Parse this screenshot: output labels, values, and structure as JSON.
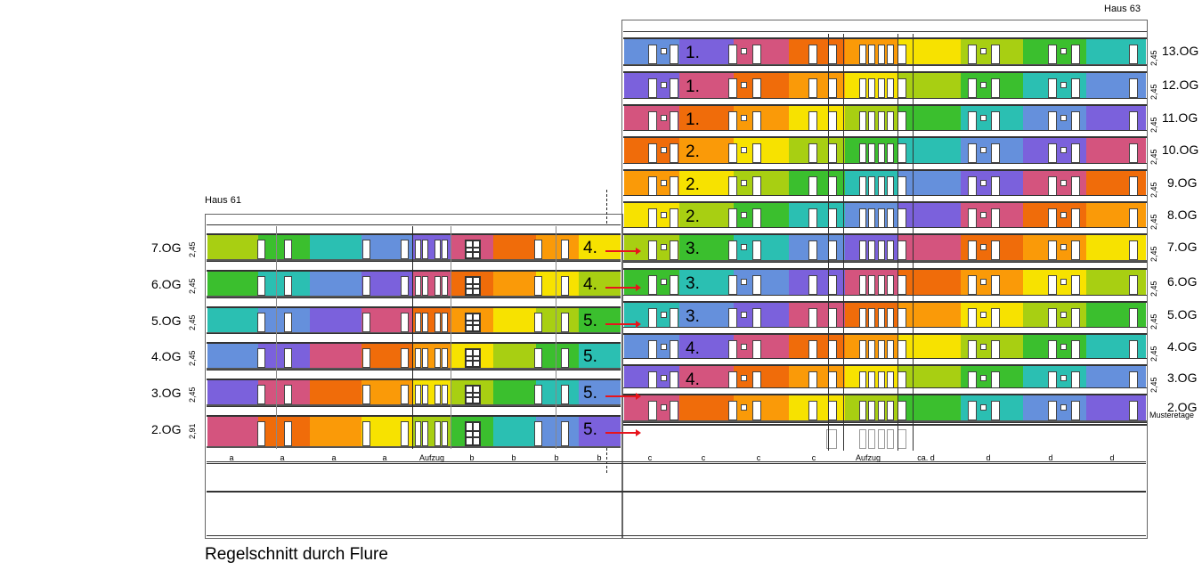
{
  "palette": {
    "blue": "#6590dc",
    "purple": "#7b61dc",
    "pink": "#d4547e",
    "dark_orange": "#f06c0a",
    "orange": "#fa9a08",
    "yellow": "#f7e200",
    "lime": "#a8cf12",
    "green": "#3bbf2e",
    "teal": "#2bbfb2"
  },
  "color_cycle": [
    "blue",
    "purple",
    "pink",
    "dark_orange",
    "orange",
    "yellow",
    "lime",
    "green",
    "teal"
  ],
  "haus61": {
    "title": "Haus 61",
    "floors": [
      {
        "label": "7.OG",
        "dim": "2,45",
        "number": "4.",
        "color_start": 6,
        "arrow": true
      },
      {
        "label": "6.OG",
        "dim": "2,45",
        "number": "4.",
        "color_start": 7,
        "arrow": true
      },
      {
        "label": "5.OG",
        "dim": "2,45",
        "number": "5.",
        "color_start": 8,
        "arrow": true
      },
      {
        "label": "4.OG",
        "dim": "2,45",
        "number": "5.",
        "color_start": 0,
        "arrow": false
      },
      {
        "label": "3.OG",
        "dim": "2,45",
        "number": "5.",
        "color_start": 1,
        "arrow": true
      },
      {
        "label": "2.OG",
        "dim": "2,91",
        "number": "5.",
        "color_start": 2,
        "arrow": true
      }
    ],
    "axis": [
      "a",
      "a",
      "a",
      "a",
      "Aufzug",
      "b",
      "b",
      "b",
      "b"
    ]
  },
  "haus63": {
    "title": "Haus 63",
    "floors": [
      {
        "label": "13.OG",
        "dim": "2,45",
        "number": "1.",
        "color_start": 0
      },
      {
        "label": "12.OG",
        "dim": "2,45",
        "number": "1.",
        "color_start": 1
      },
      {
        "label": "11.OG",
        "dim": "2,45",
        "number": "1.",
        "color_start": 2
      },
      {
        "label": "10.OG",
        "dim": "2,45",
        "number": "2.",
        "color_start": 3
      },
      {
        "label": "9.OG",
        "dim": "2,45",
        "number": "2.",
        "color_start": 4
      },
      {
        "label": "8.OG",
        "dim": "2,45",
        "number": "2.",
        "color_start": 5
      },
      {
        "label": "7.OG",
        "dim": "2,45",
        "number": "3.",
        "color_start": 6
      },
      {
        "label": "6.OG",
        "dim": "2,45",
        "number": "3.",
        "color_start": 7
      },
      {
        "label": "5.OG",
        "dim": "2,45",
        "number": "3.",
        "color_start": 8
      },
      {
        "label": "4.OG",
        "dim": "2,45",
        "number": "4.",
        "color_start": 0
      },
      {
        "label": "3.OG",
        "dim": "2,45",
        "number": "4.",
        "color_start": 1
      },
      {
        "label": "2.OG",
        "dim": "",
        "number": "",
        "color_start": 2,
        "sublabel": "Musteretage"
      }
    ],
    "axis": [
      "c",
      "c",
      "c",
      "c",
      "Aufzug",
      "ca. d",
      "d",
      "d",
      "d"
    ]
  },
  "caption": "Regelschnitt durch Flure"
}
